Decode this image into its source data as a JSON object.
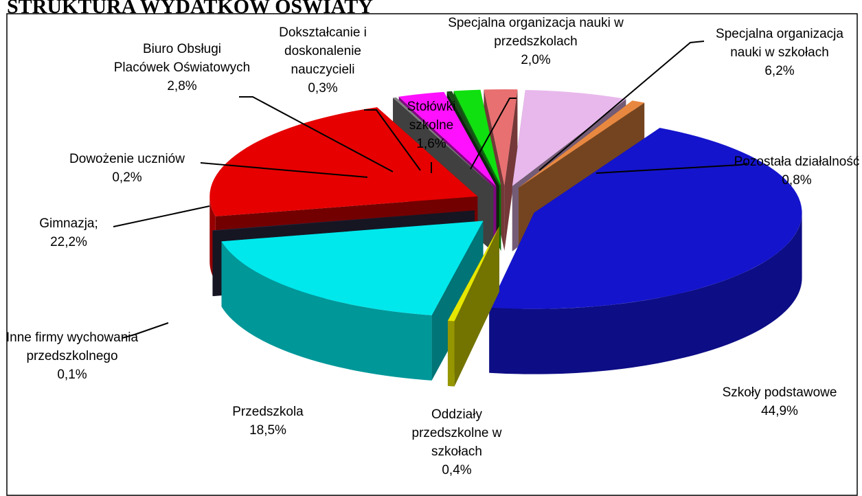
{
  "chart_data": {
    "type": "pie",
    "title": "STRUKTURA WYDATKÓW OŚWIATY",
    "categories": [
      "Szkoły podstawowe",
      "Oddziały przedszkolne w szkołach",
      "Przedszkola",
      "Inne firmy wychowania przedszkolnego",
      "Gimnazja;",
      "Dowożenie uczniów",
      "Biuro Obsługi Placówek Oświatowych",
      "Dokształcanie i doskonalenie nauczycieli",
      "Stołówki szkolne",
      "Specjalna organizacja nauki w przedszkolach",
      "Specjalna organizacja nauki w szkołach",
      "Pozostała działalność"
    ],
    "values": [
      44.9,
      0.4,
      18.5,
      0.1,
      22.2,
      0.2,
      2.8,
      0.3,
      1.6,
      2.0,
      6.2,
      0.8
    ],
    "value_labels": [
      "44,9%",
      "0,4%",
      "18,5%",
      "0,1%",
      "22,2%",
      "0,2%",
      "2,8%",
      "0,3%",
      "1,6%",
      "2,0%",
      "6,2%",
      "0,8%"
    ],
    "colors": [
      "#1414cc",
      "#e6e600",
      "#00e8ec",
      "#2c2a44",
      "#e60000",
      "#808080",
      "#ff10ff",
      "#1a4a1a",
      "#10e010",
      "#e87070",
      "#e8b8ec",
      "#e88840"
    ]
  }
}
